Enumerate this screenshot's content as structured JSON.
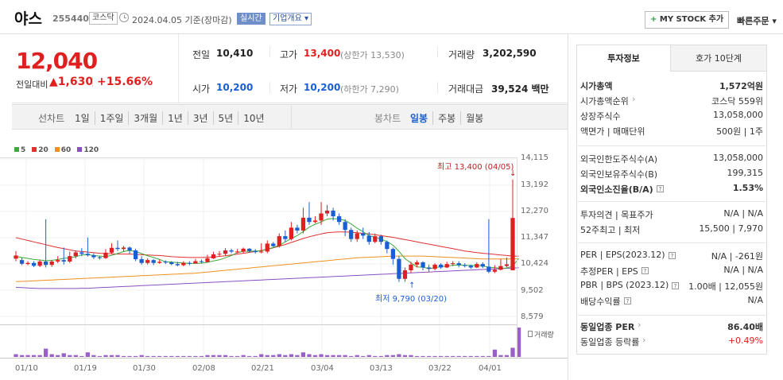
{
  "header": {
    "name": "야스",
    "code": "255440",
    "market": "코스닥",
    "date": "2024.04.05",
    "basis": "기준(장마감)",
    "realtime": "실시간",
    "overview": "기업개요",
    "my_stock": "MY STOCK 추가",
    "quick_order": "빠른주문"
  },
  "price": {
    "current": "12,040",
    "change_label": "전일대비",
    "change_amount": "1,630",
    "change_pct": "+15.66%",
    "prev_label": "전일",
    "prev": "10,410",
    "high_label": "고가",
    "high": "13,400",
    "upper_limit": "(상한가 13,530)",
    "volume_label": "거래량",
    "volume": "3,202,590",
    "open_label": "시가",
    "open": "10,200",
    "low_label": "저가",
    "low": "10,200",
    "lower_limit": "(하한가 7,290)",
    "amount_label": "거래대금",
    "amount": "39,524",
    "amount_unit": "백만"
  },
  "period_tabs": {
    "line_chart": "선차트",
    "items": [
      "1일",
      "1주일",
      "3개월",
      "1년",
      "3년",
      "5년",
      "10년"
    ],
    "candle_chart": "봉차트",
    "candle_items": [
      "일봉",
      "주봉",
      "월봉"
    ]
  },
  "legend": [
    {
      "label": "5",
      "color": "#3caa3c"
    },
    {
      "label": "20",
      "color": "#e03030"
    },
    {
      "label": "60",
      "color": "#f0901e"
    },
    {
      "label": "120",
      "color": "#8a4fc0"
    }
  ],
  "chart_data": {
    "type": "candlestick",
    "y_ticks": [
      "14,115",
      "13,192",
      "12,270",
      "11,347",
      "10,424",
      "9,502",
      "8,579"
    ],
    "ylim": [
      8579,
      14115
    ],
    "x_ticks": [
      "01/10",
      "01/19",
      "01/30",
      "02/08",
      "02/21",
      "03/04",
      "03/13",
      "03/22",
      "04/01"
    ],
    "high_annotation": "최고 13,400 (04/05)",
    "low_annotation": "최저 9,790 (03/20)",
    "volume_label": "거래량",
    "candles": [
      [
        10610,
        10720,
        10880,
        10520
      ],
      [
        10560,
        10430,
        10640,
        10380
      ],
      [
        10420,
        10460,
        10520,
        10380
      ],
      [
        10460,
        10360,
        10520,
        10310
      ],
      [
        10360,
        10510,
        10580,
        10310
      ],
      [
        10510,
        10390,
        12000,
        10300
      ],
      [
        10390,
        10510,
        10560,
        10320
      ],
      [
        10510,
        10560,
        10700,
        10450
      ],
      [
        10560,
        10510,
        11000,
        10400
      ],
      [
        10510,
        10700,
        10860,
        10460
      ],
      [
        10700,
        10830,
        10900,
        10620
      ],
      [
        10830,
        10780,
        10980,
        10700
      ],
      [
        10780,
        10730,
        11350,
        10680
      ],
      [
        10730,
        10660,
        10800,
        10600
      ],
      [
        10660,
        10630,
        10700,
        10580
      ],
      [
        10630,
        10820,
        10950,
        10600
      ],
      [
        10820,
        10990,
        11150,
        10780
      ],
      [
        10990,
        10950,
        11250,
        10880
      ],
      [
        10950,
        11000,
        11060,
        10850
      ],
      [
        11000,
        10900,
        11040,
        10780
      ],
      [
        10900,
        10590,
        10960,
        10520
      ],
      [
        10590,
        10460,
        10700,
        10400
      ],
      [
        10460,
        10560,
        10620,
        10400
      ],
      [
        10560,
        10460,
        10600,
        10380
      ],
      [
        10460,
        10500,
        10580,
        10430
      ],
      [
        10500,
        10480,
        10550,
        10420
      ],
      [
        10480,
        10420,
        10520,
        10380
      ],
      [
        10420,
        10380,
        10500,
        10340
      ],
      [
        10380,
        10460,
        10520,
        10340
      ],
      [
        10460,
        10440,
        10520,
        10380
      ],
      [
        10440,
        10520,
        10600,
        10440
      ],
      [
        10520,
        10490,
        10580,
        10450
      ],
      [
        10490,
        10620,
        10750,
        10480
      ],
      [
        10620,
        10760,
        10850,
        10600
      ],
      [
        10760,
        10780,
        10880,
        10700
      ],
      [
        10780,
        10900,
        10980,
        10700
      ],
      [
        10900,
        10860,
        10960,
        10800
      ],
      [
        10860,
        10860,
        10950,
        10800
      ],
      [
        10860,
        10960,
        11000,
        10800
      ],
      [
        10960,
        10880,
        10980,
        10820
      ],
      [
        10880,
        10840,
        10950,
        10790
      ],
      [
        10840,
        10860,
        11150,
        10800
      ],
      [
        10860,
        11140,
        11250,
        10800
      ],
      [
        11140,
        11050,
        11200,
        11000
      ],
      [
        11050,
        11400,
        11500,
        11000
      ],
      [
        11400,
        11300,
        11600,
        11200
      ],
      [
        11300,
        11700,
        11900,
        11250
      ],
      [
        11700,
        11600,
        11800,
        11500
      ],
      [
        11600,
        12050,
        12400,
        11500
      ],
      [
        12050,
        11900,
        12600,
        11800
      ],
      [
        11900,
        11950,
        12100,
        11850
      ],
      [
        11950,
        12200,
        12600,
        11800
      ],
      [
        12200,
        12300,
        12500,
        12100
      ],
      [
        12300,
        12100,
        12400,
        11950
      ],
      [
        12100,
        11900,
        12200,
        11800
      ],
      [
        11900,
        11620,
        12000,
        11400
      ],
      [
        11620,
        11300,
        11700,
        11200
      ],
      [
        11300,
        11500,
        11600,
        11200
      ],
      [
        11500,
        11420,
        11700,
        11300
      ],
      [
        11420,
        11200,
        11550,
        11100
      ],
      [
        11200,
        11400,
        11500,
        11150
      ],
      [
        11400,
        11200,
        11450,
        11100
      ],
      [
        11200,
        10950,
        11250,
        10800
      ],
      [
        10950,
        10600,
        11000,
        10400
      ],
      [
        10600,
        9900,
        10700,
        9790
      ],
      [
        9900,
        10200,
        10300,
        9800
      ],
      [
        10200,
        10400,
        10500,
        10100
      ],
      [
        10400,
        10480,
        10550,
        10300
      ],
      [
        10480,
        10300,
        10520,
        10200
      ],
      [
        10300,
        10250,
        10400,
        10150
      ],
      [
        10250,
        10400,
        10450,
        10200
      ],
      [
        10400,
        10300,
        10450,
        10250
      ],
      [
        10300,
        10420,
        10500,
        10280
      ],
      [
        10420,
        10450,
        10520,
        10350
      ],
      [
        10450,
        10380,
        10520,
        10300
      ],
      [
        10380,
        10360,
        10450,
        10300
      ],
      [
        10360,
        10300,
        10400,
        10250
      ],
      [
        10300,
        10420,
        10480,
        10280
      ],
      [
        10420,
        10330,
        10480,
        10280
      ],
      [
        10330,
        10150,
        12000,
        10100
      ],
      [
        10150,
        10220,
        10380,
        10100
      ],
      [
        10220,
        10350,
        10600,
        10200
      ],
      [
        10350,
        10410,
        10650,
        10300
      ],
      [
        10200,
        12040,
        13400,
        10200
      ]
    ],
    "ma5": [
      10690,
      10650,
      10620,
      10580,
      10560,
      10540,
      10550,
      10580,
      10620,
      10640,
      10680,
      10740,
      10750,
      10720,
      10700,
      10680,
      10730,
      10790,
      10860,
      10900,
      10860,
      10790,
      10710,
      10650,
      10580,
      10500,
      10490,
      10470,
      10460,
      10440,
      10440,
      10450,
      10480,
      10530,
      10570,
      10640,
      10720,
      10820,
      10870,
      10870,
      10880,
      10880,
      10950,
      11000,
      11080,
      11200,
      11320,
      11420,
      11560,
      11720,
      11820,
      11900,
      12000,
      12020,
      12000,
      11950,
      11830,
      11680,
      11560,
      11420,
      11360,
      11300,
      11210,
      11080,
      10870,
      10610,
      10460,
      10320,
      10310,
      10260,
      10290,
      10330,
      10350,
      10380,
      10390,
      10380,
      10370,
      10370,
      10360,
      10300,
      10290,
      10270,
      10280,
      10350,
      10620
    ],
    "ma20": [
      11350,
      11300,
      11250,
      11200,
      11150,
      11100,
      11050,
      11000,
      10960,
      10920,
      10880,
      10860,
      10840,
      10820,
      10800,
      10790,
      10780,
      10770,
      10770,
      10770,
      10760,
      10750,
      10740,
      10730,
      10720,
      10700,
      10680,
      10670,
      10660,
      10650,
      10650,
      10650,
      10660,
      10670,
      10690,
      10710,
      10740,
      10770,
      10800,
      10830,
      10860,
      10900,
      10940,
      10990,
      11050,
      11110,
      11180,
      11250,
      11320,
      11380,
      11430,
      11480,
      11520,
      11540,
      11550,
      11550,
      11540,
      11520,
      11500,
      11480,
      11450,
      11420,
      11390,
      11360,
      11320,
      11280,
      11240,
      11200,
      11160,
      11120,
      11080,
      11040,
      11000,
      10960,
      10920,
      10880,
      10850,
      10820,
      10800,
      10780,
      10760,
      10740,
      10720,
      10700,
      10700
    ],
    "ma60": [
      9800,
      9810,
      9820,
      9830,
      9840,
      9850,
      9860,
      9870,
      9880,
      9890,
      9900,
      9910,
      9920,
      9930,
      9940,
      9950,
      9960,
      9970,
      9980,
      9990,
      10000,
      10010,
      10020,
      10030,
      10040,
      10050,
      10060,
      10070,
      10080,
      10090,
      10100,
      10120,
      10140,
      10160,
      10180,
      10200,
      10220,
      10240,
      10260,
      10280,
      10300,
      10320,
      10340,
      10360,
      10380,
      10400,
      10420,
      10440,
      10460,
      10480,
      10500,
      10520,
      10540,
      10560,
      10580,
      10600,
      10620,
      10640,
      10650,
      10660,
      10670,
      10680,
      10690,
      10700,
      10700,
      10700,
      10700,
      10700,
      10700,
      10690,
      10680,
      10670,
      10660,
      10650,
      10640,
      10630,
      10620,
      10610,
      10600,
      10600,
      10600,
      10600,
      10600,
      10600,
      10610
    ],
    "ma120": [
      9600,
      9590,
      9580,
      9570,
      9560,
      9560,
      9560,
      9560,
      9560,
      9560,
      9560,
      9570,
      9570,
      9580,
      9590,
      9600,
      9610,
      9620,
      9630,
      9640,
      9650,
      9660,
      9670,
      9680,
      9690,
      9700,
      9710,
      9720,
      9730,
      9740,
      9750,
      9760,
      9770,
      9780,
      9790,
      9800,
      9810,
      9820,
      9830,
      9840,
      9850,
      9860,
      9870,
      9880,
      9890,
      9900,
      9910,
      9920,
      9930,
      9940,
      9950,
      9960,
      9970,
      9980,
      9990,
      10000,
      10010,
      10020,
      10030,
      10040,
      10050,
      10060,
      10070,
      10080,
      10090,
      10100,
      10110,
      10120,
      10130,
      10140,
      10150,
      10160,
      10170,
      10180,
      10190,
      10200,
      10210,
      10220,
      10230,
      10240,
      10250,
      10260,
      10270,
      10280,
      10290
    ],
    "volumes": [
      3,
      2,
      2,
      2,
      2,
      9,
      3,
      2,
      4,
      2,
      2,
      1,
      5,
      2,
      1,
      2,
      2,
      2,
      1,
      1,
      1,
      2,
      1,
      1,
      1,
      1,
      1,
      1,
      1,
      1,
      1,
      1,
      2,
      2,
      2,
      2,
      1,
      1,
      2,
      1,
      1,
      3,
      2,
      2,
      3,
      2,
      3,
      2,
      5,
      3,
      2,
      3,
      2,
      2,
      2,
      2,
      1,
      2,
      1,
      2,
      1,
      1,
      2,
      2,
      3,
      2,
      2,
      1,
      1,
      1,
      1,
      1,
      1,
      1,
      1,
      1,
      1,
      1,
      1,
      1,
      8,
      2,
      2,
      10,
      32
    ]
  },
  "right_panel": {
    "tab_active": "투자정보",
    "tab_other": "호가 10단계",
    "section1": [
      {
        "k": "시가총액",
        "v": "1,572억원",
        "bold": true
      },
      {
        "k": "시가총액순위",
        "v": "코스닥 559위",
        "arrow": true
      },
      {
        "k": "상장주식수",
        "v": "13,058,000"
      },
      {
        "k": "액면가 | 매매단위",
        "v": "500원 | 1주"
      }
    ],
    "section2": [
      {
        "k": "외국인한도주식수(A)",
        "v": "13,058,000"
      },
      {
        "k": "외국인보유주식수(B)",
        "v": "199,315"
      },
      {
        "k": "외국인소진율(B/A)",
        "v": "1.53%",
        "bold": true,
        "help": true
      }
    ],
    "section3": [
      {
        "k": "투자의견 | 목표주가",
        "v": "N/A | N/A"
      },
      {
        "k": "52주최고 | 최저",
        "v": "15,500 | 7,970"
      }
    ],
    "section4": [
      {
        "k": "PER | EPS(2023.12)",
        "v": "N/A | -261원",
        "help": true
      },
      {
        "k": "추정PER | EPS",
        "v": "N/A | N/A",
        "help": true
      },
      {
        "k": "PBR | BPS (2023.12)",
        "v": "1.00배 | 12,055원",
        "help": true
      },
      {
        "k": "배당수익률",
        "v": "N/A",
        "help": true
      }
    ],
    "section5": [
      {
        "k": "동일업종 PER",
        "v": "86.40배",
        "bold": true,
        "arrow": true
      },
      {
        "k": "동일업종 등락률",
        "v": "+0.49%",
        "red": true,
        "arrow": true
      }
    ]
  }
}
